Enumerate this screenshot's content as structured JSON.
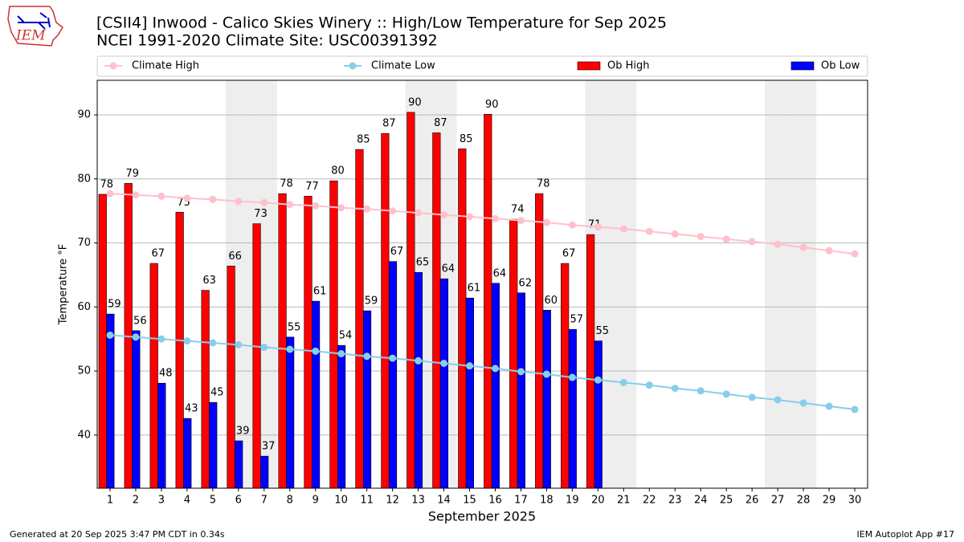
{
  "chart_data": {
    "type": "bar",
    "title": "[CSII4] Inwood - Calico Skies Winery :: High/Low Temperature for Sep 2025",
    "subtitle": "NCEI 1991-2020 Climate Site: USC00391392",
    "x_label": "September 2025",
    "y_label": "Temperature °F",
    "footer_left": "Generated at 20 Sep 2025 3:47 PM CDT in 0.34s",
    "footer_right": "IEM Autoplot App #17",
    "logo_text": "IEM",
    "x": [
      1,
      2,
      3,
      4,
      5,
      6,
      7,
      8,
      9,
      10,
      11,
      12,
      13,
      14,
      15,
      16,
      17,
      18,
      19,
      20,
      21,
      22,
      23,
      24,
      25,
      26,
      27,
      28,
      29,
      30
    ],
    "xlim": [
      0.5,
      30.5
    ],
    "xticks": [
      1,
      2,
      3,
      4,
      5,
      6,
      7,
      8,
      9,
      10,
      11,
      12,
      13,
      14,
      15,
      16,
      17,
      18,
      19,
      20,
      21,
      22,
      23,
      24,
      25,
      26,
      27,
      28,
      29,
      30
    ],
    "ylim": [
      31.7,
      95.4
    ],
    "yticks": [
      40,
      50,
      60,
      70,
      80,
      90
    ],
    "grid": true,
    "shaded_days": [
      6,
      7,
      13,
      14,
      20,
      21,
      27,
      28
    ],
    "series": [
      {
        "name": "Climate High",
        "type": "line",
        "color": "#ffc0cb",
        "values": [
          77.7,
          77.5,
          77.3,
          77.0,
          76.8,
          76.5,
          76.3,
          76.0,
          75.8,
          75.5,
          75.3,
          75.0,
          74.7,
          74.4,
          74.1,
          73.8,
          73.5,
          73.2,
          72.8,
          72.5,
          72.2,
          71.8,
          71.4,
          71.0,
          70.6,
          70.2,
          69.8,
          69.3,
          68.8,
          68.3
        ]
      },
      {
        "name": "Climate Low",
        "type": "line",
        "color": "#87ceeb",
        "values": [
          55.6,
          55.3,
          55.0,
          54.7,
          54.4,
          54.1,
          53.7,
          53.4,
          53.1,
          52.7,
          52.3,
          52.0,
          51.6,
          51.2,
          50.8,
          50.4,
          49.9,
          49.5,
          49.0,
          48.6,
          48.2,
          47.8,
          47.3,
          46.9,
          46.4,
          45.9,
          45.5,
          45.0,
          44.5,
          44.0
        ]
      },
      {
        "name": "Ob High",
        "type": "bar",
        "color": "#ff0000",
        "values": [
          77.6,
          79.3,
          66.8,
          74.8,
          62.6,
          66.4,
          73.0,
          77.7,
          77.3,
          79.7,
          84.6,
          87.1,
          90.4,
          87.2,
          84.7,
          90.1,
          73.7,
          77.7,
          66.8,
          71.3,
          null,
          null,
          null,
          null,
          null,
          null,
          null,
          null,
          null,
          null
        ],
        "value_labels": [
          "78",
          "79",
          "67",
          "75",
          "63",
          "66",
          "73",
          "78",
          "77",
          "80",
          "85",
          "87",
          "90",
          "87",
          "85",
          "90",
          "74",
          "78",
          "67",
          "71",
          null,
          null,
          null,
          null,
          null,
          null,
          null,
          null,
          null,
          null
        ]
      },
      {
        "name": "Ob Low",
        "type": "bar",
        "color": "#0000ff",
        "values": [
          58.9,
          56.3,
          48.1,
          42.6,
          45.1,
          39.1,
          36.7,
          55.3,
          60.9,
          54.0,
          59.4,
          67.1,
          65.4,
          64.4,
          61.4,
          63.7,
          62.2,
          59.5,
          56.5,
          54.7,
          null,
          null,
          null,
          null,
          null,
          null,
          null,
          null,
          null,
          null
        ],
        "value_labels": [
          "59",
          "56",
          "48",
          "43",
          "45",
          "39",
          "37",
          "55",
          "61",
          "54",
          "59",
          "67",
          "65",
          "64",
          "61",
          "64",
          "62",
          "60",
          "57",
          "55",
          null,
          null,
          null,
          null,
          null,
          null,
          null,
          null,
          null,
          null
        ]
      }
    ]
  }
}
